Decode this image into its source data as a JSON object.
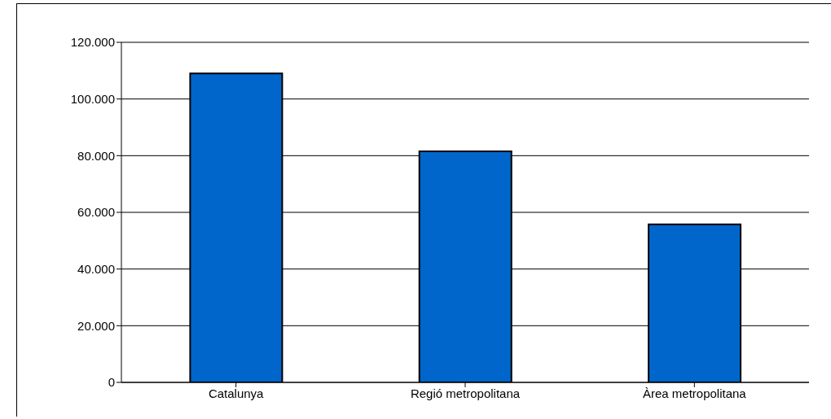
{
  "chart_data": {
    "type": "bar",
    "categories": [
      "Catalunya",
      "Regió metropolitana",
      "Àrea metropolitana"
    ],
    "values": [
      109000,
      81500,
      55800
    ],
    "color": "#0066cc",
    "ylim": [
      0,
      120000
    ],
    "yticks": [
      0,
      {
        "value": 20000,
        "label": "20.000"
      },
      {
        "value": 40000,
        "label": "40.000"
      },
      {
        "value": 60000,
        "label": "60.000"
      },
      {
        "value": 80000,
        "label": "80.000"
      },
      {
        "value": 100000,
        "label": "100.000"
      },
      {
        "value": 120000,
        "label": "120.000"
      }
    ],
    "grid": "y",
    "legend": false
  }
}
